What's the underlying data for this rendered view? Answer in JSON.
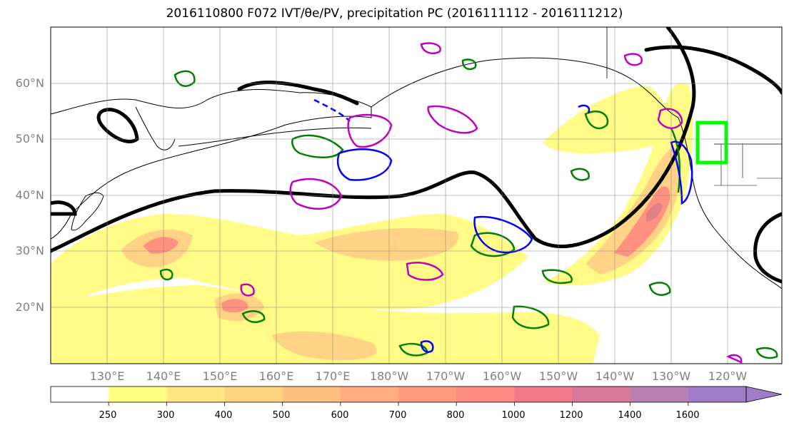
{
  "title": "2016110800 F072 IVT/θe/PV, precipitation PC (2016111112 - 2016111212)",
  "map": {
    "lat_labels": [
      "60°N",
      "50°N",
      "40°N",
      "30°N",
      "20°N"
    ],
    "lon_labels": [
      "130°E",
      "140°E",
      "150°E",
      "160°E",
      "170°E",
      "180°W",
      "170°W",
      "160°W",
      "150°W",
      "140°W",
      "130°W",
      "120°W"
    ],
    "colors": {
      "ivt_low": "#fffb80",
      "ivt_mid": "#ffd080",
      "ivt_high": "#ff8c7a",
      "ivt_peak": "#e07a80",
      "contour_green": "#008000",
      "contour_blue": "#0000ff",
      "contour_magenta": "#c000c0",
      "jet_line": "#000000",
      "target_box": "#00ff00",
      "land_outline": "#000000"
    }
  },
  "colorbar": {
    "ticks": [
      "250",
      "300",
      "400",
      "500",
      "600",
      "700",
      "800",
      "1000",
      "1200",
      "1400",
      "1600"
    ],
    "colors": [
      "#ffffff",
      "#ffff80",
      "#ffe680",
      "#ffd480",
      "#ffc080",
      "#ffac80",
      "#ff9c80",
      "#ff8a80",
      "#f07a88",
      "#d87898",
      "#b880b0",
      "#a07cc8"
    ]
  }
}
